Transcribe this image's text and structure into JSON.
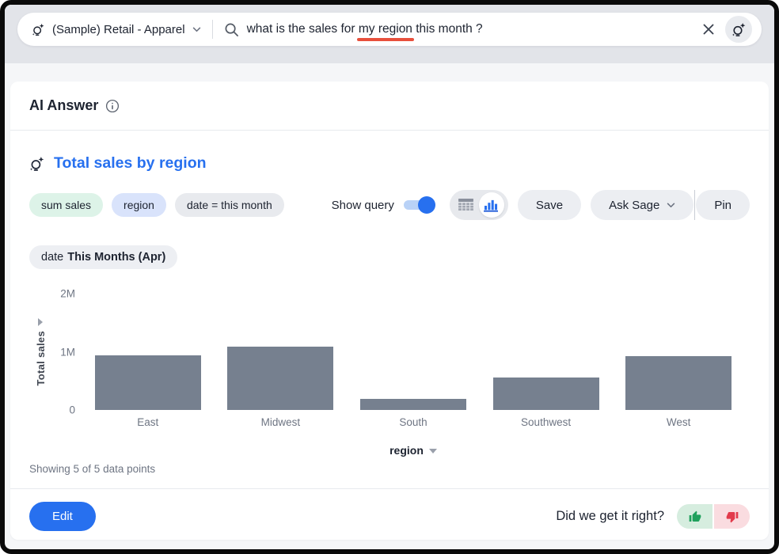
{
  "topbar": {
    "source_label": "(Sample) Retail - Apparel",
    "query_prefix": "what is the sales for ",
    "query_highlight": "my region",
    "query_suffix": " this month ?"
  },
  "panel_title": "AI Answer",
  "answer": {
    "title": "Total sales by region",
    "tokens": {
      "measure": "sum sales",
      "attribute": "region",
      "filter": "date = this month"
    },
    "show_query_label": "Show query",
    "show_query_on": true,
    "save_label": "Save",
    "ask_sage_label": "Ask Sage",
    "pin_label": "Pin",
    "date_chip_prefix": "date",
    "date_chip_value": "This Months (Apr)",
    "showing_text": "Showing 5 of 5 data points",
    "edit_label": "Edit",
    "feedback_question": "Did we get it right?"
  },
  "chart_data": {
    "type": "bar",
    "title": "Total sales by region",
    "categories": [
      "East",
      "Midwest",
      "South",
      "Southwest",
      "West"
    ],
    "values": [
      0.94,
      1.09,
      0.19,
      0.56,
      0.93
    ],
    "value_unit": "millions",
    "xlabel": "region",
    "ylabel": "Total sales",
    "ylim": [
      0,
      2
    ],
    "yticks": [
      "0",
      "1M",
      "2M"
    ],
    "grid": false,
    "legend": false,
    "bar_color": "#76808F"
  },
  "colors": {
    "accent_blue": "#2770EF",
    "bar_gray": "#76808F",
    "underline_red": "#E8503C",
    "measure_chip_green": "#DDF3E8",
    "attribute_chip_blue": "#D9E3FB",
    "thumb_up_green": "#1FA05C",
    "thumb_down_red": "#E23B4C"
  }
}
